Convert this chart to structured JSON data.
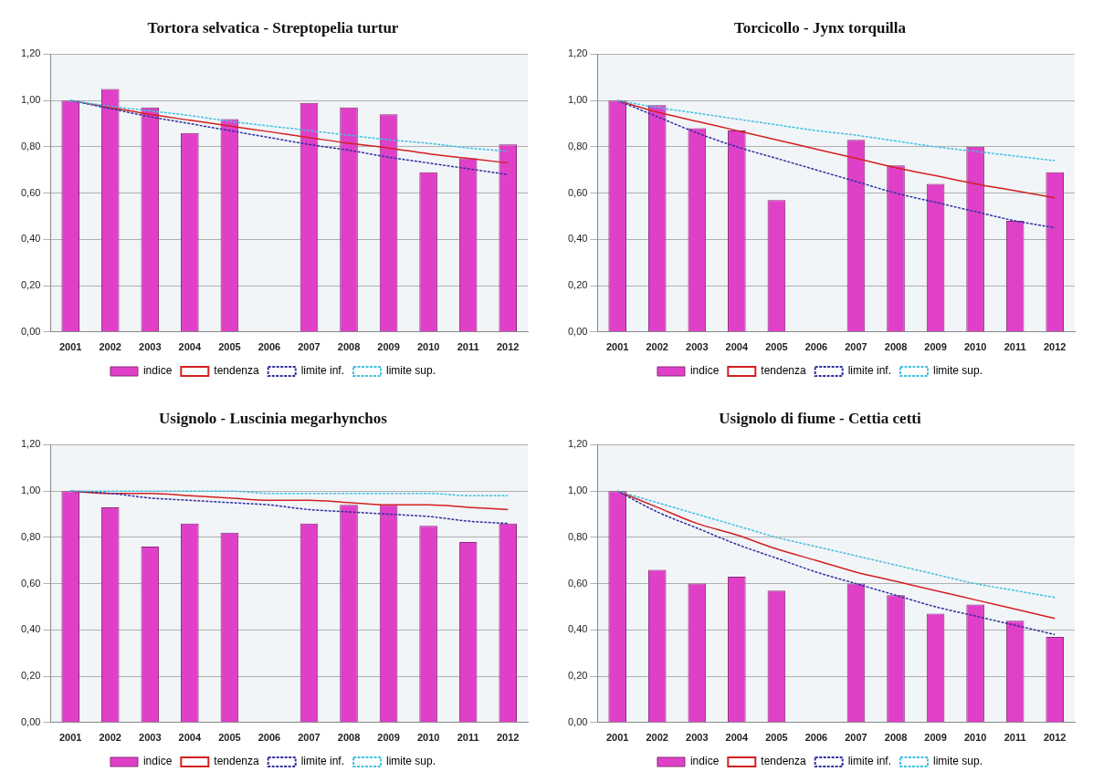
{
  "chart_data": [
    {
      "type": "bar",
      "title": "Tortora selvatica - Streptopelia turtur",
      "categories": [
        "2001",
        "2002",
        "2003",
        "2004",
        "2005",
        "2006",
        "2007",
        "2008",
        "2009",
        "2010",
        "2011",
        "2012"
      ],
      "ylim": [
        0,
        1.2
      ],
      "yticks": [
        {
          "value": 0,
          "label": "0,00"
        },
        {
          "value": 0.2,
          "label": "0,20"
        },
        {
          "value": 0.4,
          "label": "0,40"
        },
        {
          "value": 0.6,
          "label": "0,60"
        },
        {
          "value": 0.8,
          "label": "0,80"
        },
        {
          "value": 1,
          "label": "1,00"
        },
        {
          "value": 1.2,
          "label": "1,20"
        }
      ],
      "grid": "y",
      "legend": "bottom",
      "marker": "none",
      "series": [
        {
          "name": "indice",
          "color": "#e040c8",
          "values": [
            1.0,
            1.05,
            0.97,
            0.86,
            0.92,
            null,
            0.99,
            0.97,
            0.94,
            0.69,
            0.75,
            0.81
          ]
        },
        {
          "name": "tendenza",
          "type": "line",
          "color": "#d42020",
          "line_style": "solid",
          "values": [
            1.0,
            0.97,
            0.94,
            0.915,
            0.89,
            0.865,
            0.84,
            0.815,
            0.795,
            0.77,
            0.75,
            0.73
          ]
        },
        {
          "name": "limite inf.",
          "type": "line",
          "color": "#3030a0",
          "line_style": "dashed",
          "values": [
            1.0,
            0.965,
            0.93,
            0.9,
            0.87,
            0.84,
            0.81,
            0.785,
            0.755,
            0.73,
            0.705,
            0.68
          ]
        },
        {
          "name": "limite sup.",
          "type": "line",
          "color": "#40c0e0",
          "line_style": "dashed",
          "values": [
            1.0,
            0.975,
            0.955,
            0.935,
            0.91,
            0.89,
            0.87,
            0.85,
            0.83,
            0.815,
            0.795,
            0.78
          ]
        }
      ]
    },
    {
      "type": "bar",
      "title": "Torcicollo - Jynx torquilla",
      "categories": [
        "2001",
        "2002",
        "2003",
        "2004",
        "2005",
        "2006",
        "2007",
        "2008",
        "2009",
        "2010",
        "2011",
        "2012"
      ],
      "ylim": [
        0,
        1.2
      ],
      "yticks": [
        {
          "value": 0,
          "label": "0,00"
        },
        {
          "value": 0.2,
          "label": "0,20"
        },
        {
          "value": 0.4,
          "label": "0,40"
        },
        {
          "value": 0.6,
          "label": "0,60"
        },
        {
          "value": 0.8,
          "label": "0,80"
        },
        {
          "value": 1,
          "label": "1,00"
        },
        {
          "value": 1.2,
          "label": "1,20"
        }
      ],
      "grid": "y",
      "legend": "bottom",
      "marker": "none",
      "series": [
        {
          "name": "indice",
          "color": "#e040c8",
          "values": [
            1.0,
            0.98,
            0.88,
            0.87,
            0.57,
            null,
            0.83,
            0.72,
            0.64,
            0.8,
            0.48,
            0.69
          ]
        },
        {
          "name": "tendenza",
          "type": "line",
          "color": "#d42020",
          "line_style": "solid",
          "values": [
            1.0,
            0.95,
            0.91,
            0.87,
            0.83,
            0.79,
            0.75,
            0.71,
            0.675,
            0.64,
            0.61,
            0.58
          ]
        },
        {
          "name": "limite inf.",
          "type": "line",
          "color": "#3030a0",
          "line_style": "dashed",
          "values": [
            1.0,
            0.93,
            0.86,
            0.8,
            0.75,
            0.7,
            0.65,
            0.6,
            0.56,
            0.52,
            0.48,
            0.45
          ]
        },
        {
          "name": "limite sup.",
          "type": "line",
          "color": "#40c0e0",
          "line_style": "dashed",
          "values": [
            1.0,
            0.97,
            0.945,
            0.92,
            0.895,
            0.87,
            0.85,
            0.825,
            0.8,
            0.78,
            0.76,
            0.74
          ]
        }
      ]
    },
    {
      "type": "bar",
      "title": "Usignolo - Luscinia megarhynchos",
      "categories": [
        "2001",
        "2002",
        "2003",
        "2004",
        "2005",
        "2006",
        "2007",
        "2008",
        "2009",
        "2010",
        "2011",
        "2012"
      ],
      "ylim": [
        0,
        1.2
      ],
      "yticks": [
        {
          "value": 0,
          "label": "0,00"
        },
        {
          "value": 0.2,
          "label": "0,20"
        },
        {
          "value": 0.4,
          "label": "0,40"
        },
        {
          "value": 0.6,
          "label": "0,60"
        },
        {
          "value": 0.8,
          "label": "0,80"
        },
        {
          "value": 1,
          "label": "1,00"
        },
        {
          "value": 1.2,
          "label": "1,20"
        }
      ],
      "grid": "y",
      "legend": "bottom",
      "marker": "none",
      "series": [
        {
          "name": "indice",
          "color": "#e040c8",
          "values": [
            1.0,
            0.93,
            0.76,
            0.86,
            0.82,
            null,
            0.86,
            0.94,
            0.94,
            0.85,
            0.78,
            0.86
          ]
        },
        {
          "name": "tendenza",
          "type": "line",
          "color": "#d42020",
          "line_style": "solid",
          "values": [
            1.0,
            0.99,
            0.99,
            0.98,
            0.97,
            0.96,
            0.96,
            0.95,
            0.94,
            0.94,
            0.93,
            0.92
          ]
        },
        {
          "name": "limite inf.",
          "type": "line",
          "color": "#3030a0",
          "line_style": "dashed",
          "values": [
            1.0,
            0.99,
            0.97,
            0.96,
            0.95,
            0.94,
            0.92,
            0.91,
            0.9,
            0.89,
            0.87,
            0.86
          ]
        },
        {
          "name": "limite sup.",
          "type": "line",
          "color": "#40c0e0",
          "line_style": "dashed",
          "values": [
            1.0,
            1.0,
            1.0,
            1.0,
            1.0,
            0.99,
            0.99,
            0.99,
            0.99,
            0.99,
            0.98,
            0.98
          ]
        }
      ]
    },
    {
      "type": "bar",
      "title": "Usignolo di fiume - Cettia cetti",
      "categories": [
        "2001",
        "2002",
        "2003",
        "2004",
        "2005",
        "2006",
        "2007",
        "2008",
        "2009",
        "2010",
        "2011",
        "2012"
      ],
      "ylim": [
        0,
        1.2
      ],
      "yticks": [
        {
          "value": 0,
          "label": "0,00"
        },
        {
          "value": 0.2,
          "label": "0,20"
        },
        {
          "value": 0.4,
          "label": "0,40"
        },
        {
          "value": 0.6,
          "label": "0,60"
        },
        {
          "value": 0.8,
          "label": "0,80"
        },
        {
          "value": 1,
          "label": "1,00"
        },
        {
          "value": 1.2,
          "label": "1,20"
        }
      ],
      "grid": "y",
      "legend": "bottom",
      "marker": "none",
      "series": [
        {
          "name": "indice",
          "color": "#e040c8",
          "values": [
            1.0,
            0.66,
            0.6,
            0.63,
            0.57,
            null,
            0.6,
            0.55,
            0.47,
            0.51,
            0.44,
            0.37
          ]
        },
        {
          "name": "tendenza",
          "type": "line",
          "color": "#d42020",
          "line_style": "solid",
          "values": [
            1.0,
            0.93,
            0.86,
            0.81,
            0.75,
            0.7,
            0.65,
            0.61,
            0.57,
            0.53,
            0.49,
            0.45
          ]
        },
        {
          "name": "limite inf.",
          "type": "line",
          "color": "#3030a0",
          "line_style": "dashed",
          "values": [
            1.0,
            0.91,
            0.84,
            0.77,
            0.71,
            0.65,
            0.6,
            0.55,
            0.5,
            0.46,
            0.42,
            0.38
          ]
        },
        {
          "name": "limite sup.",
          "type": "line",
          "color": "#40c0e0",
          "line_style": "dashed",
          "values": [
            1.0,
            0.95,
            0.9,
            0.85,
            0.8,
            0.76,
            0.72,
            0.68,
            0.64,
            0.6,
            0.57,
            0.54
          ]
        }
      ]
    }
  ]
}
